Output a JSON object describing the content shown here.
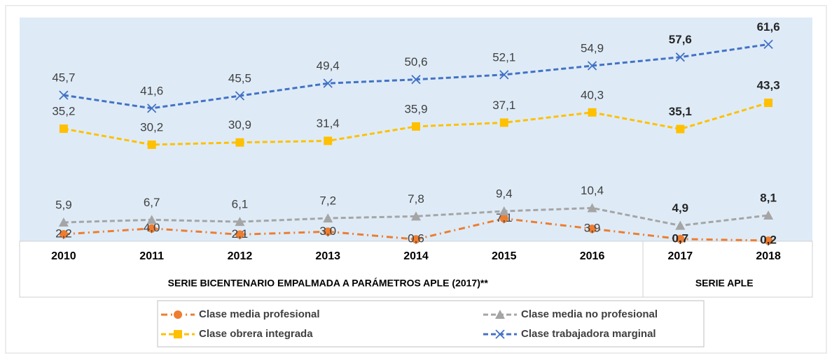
{
  "chart_data": {
    "type": "line",
    "categories": [
      "2010",
      "2011",
      "2012",
      "2013",
      "2014",
      "2015",
      "2016",
      "2017",
      "2018"
    ],
    "group_labels": [
      "SERIE BICENTENARIO EMPALMADA A PARÁMETROS APLE (2017)**",
      "SERIE APLE"
    ],
    "ylim": [
      0,
      70
    ],
    "series": [
      {
        "name": "Clase media profesional",
        "color": "#ED7D31",
        "marker": "circle",
        "values": [
          2.2,
          4.0,
          2.1,
          3.0,
          0.6,
          7.1,
          3.9,
          0.7,
          0.2
        ],
        "value_labels": [
          "2,2",
          "4,0",
          "2,1",
          "3,0",
          "0,6",
          "7,1",
          "3,9",
          "0,7",
          "0,2"
        ]
      },
      {
        "name": "Clase media no profesional",
        "color": "#A5A5A5",
        "marker": "triangle",
        "values": [
          5.9,
          6.7,
          6.1,
          7.2,
          7.8,
          9.4,
          10.4,
          4.9,
          8.1
        ],
        "value_labels": [
          "5,9",
          "6,7",
          "6,1",
          "7,2",
          "7,8",
          "9,4",
          "10,4",
          "4,9",
          "8,1"
        ]
      },
      {
        "name": "Clase obrera integrada",
        "color": "#FFC000",
        "marker": "square",
        "values": [
          35.2,
          30.2,
          30.9,
          31.4,
          35.9,
          37.1,
          40.3,
          35.1,
          43.3
        ],
        "value_labels": [
          "35,2",
          "30,2",
          "30,9",
          "31,4",
          "35,9",
          "37,1",
          "40,3",
          "35,1",
          "43,3"
        ]
      },
      {
        "name": "Clase trabajadora marginal",
        "color": "#4472C4",
        "marker": "x",
        "values": [
          45.7,
          41.6,
          45.5,
          49.4,
          50.6,
          52.1,
          54.9,
          57.6,
          61.6
        ],
        "value_labels": [
          "45,7",
          "41,6",
          "45,5",
          "49,4",
          "50,6",
          "52,1",
          "54,9",
          "57,6",
          "61,6"
        ]
      }
    ]
  }
}
